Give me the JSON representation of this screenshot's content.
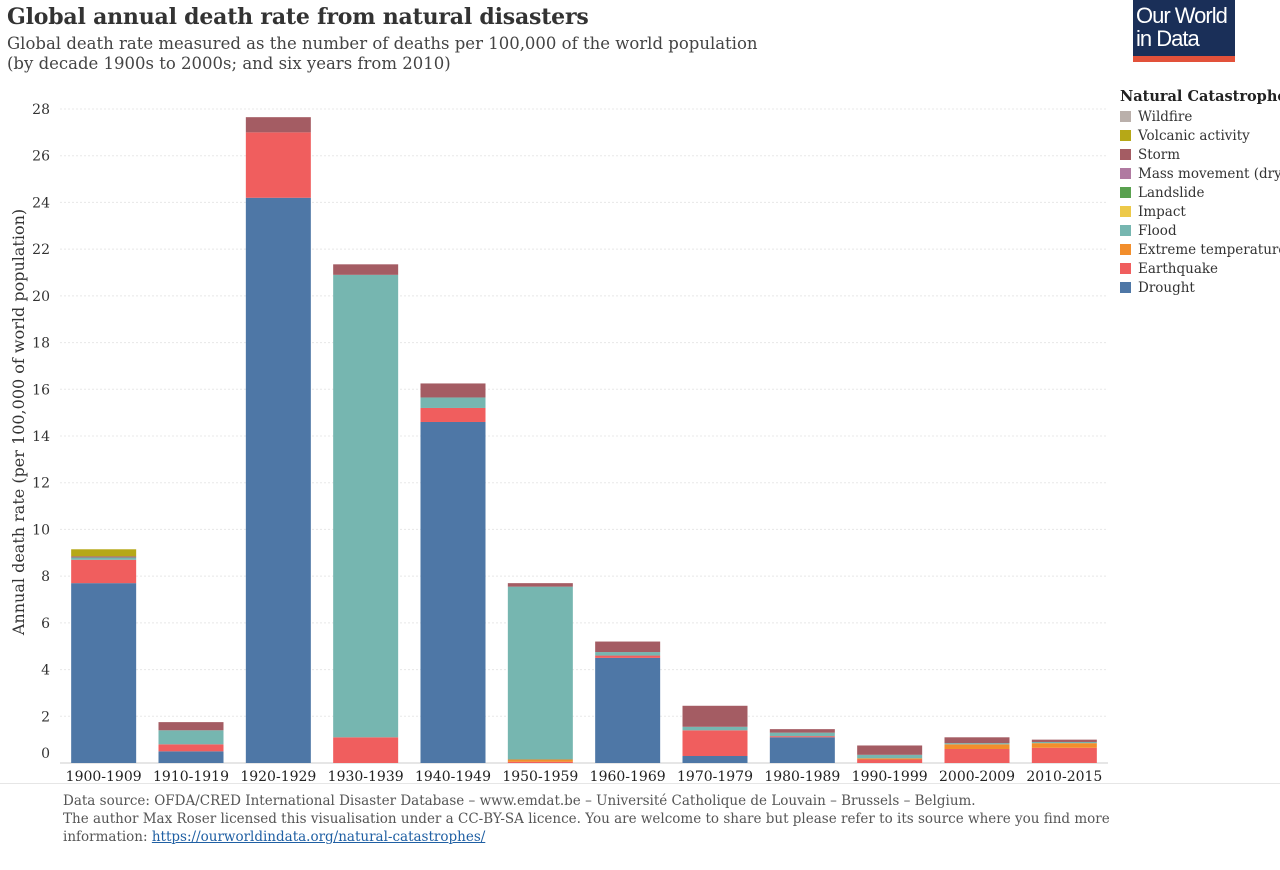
{
  "header": {
    "title": "Global annual death rate from natural disasters",
    "subtitle_line1": "Global death rate measured as the number of deaths per 100,000 of the world population",
    "subtitle_line2": "(by decade 1900s to 2000s; and six years from 2010)"
  },
  "logo": {
    "line1": "Our World",
    "line2": "in Data"
  },
  "legend": {
    "title": "Natural Catastrophe"
  },
  "footer": {
    "line1": "Data source: OFDA/CRED International Disaster Database – www.emdat.be – Université Catholique de Louvain – Brussels – Belgium.",
    "line2": "The author Max Roser licensed this visualisation under a CC-BY-SA licence. You are welcome to share but please refer to its source where you find more",
    "line3_prefix": "information: ",
    "link": "https://ourworldindata.org/natural-catastrophes/"
  },
  "chart_data": {
    "type": "bar",
    "stacked": true,
    "title": "Global annual death rate from natural disasters",
    "ylabel": "Annual death rate (per 100,000 of world population)",
    "xlabel": "",
    "ylim": [
      0,
      28
    ],
    "yticks": [
      0,
      2,
      4,
      6,
      8,
      10,
      12,
      14,
      16,
      18,
      20,
      22,
      24,
      26,
      28
    ],
    "categories": [
      "1900-1909",
      "1910-1919",
      "1920-1929",
      "1930-1939",
      "1940-1949",
      "1950-1959",
      "1960-1969",
      "1970-1979",
      "1980-1989",
      "1990-1999",
      "2000-2009",
      "2010-2015"
    ],
    "series": [
      {
        "name": "Drought",
        "color": "#4e77a6",
        "values": [
          7.7,
          0.5,
          24.2,
          0,
          14.6,
          0,
          4.5,
          0.3,
          1.1,
          0,
          0,
          0
        ]
      },
      {
        "name": "Earthquake",
        "color": "#f05e5e",
        "values": [
          1.0,
          0.3,
          2.8,
          1.1,
          0.6,
          0.05,
          0.1,
          1.1,
          0.05,
          0.15,
          0.6,
          0.65
        ]
      },
      {
        "name": "Extreme temperature",
        "color": "#f28e2c",
        "values": [
          0,
          0,
          0,
          0,
          0,
          0.1,
          0,
          0,
          0,
          0.05,
          0.2,
          0.2
        ]
      },
      {
        "name": "Flood",
        "color": "#76b6b0",
        "values": [
          0.1,
          0.6,
          0,
          19.8,
          0.45,
          7.4,
          0.15,
          0.15,
          0.15,
          0.15,
          0.05,
          0.05
        ]
      },
      {
        "name": "Impact",
        "color": "#edc949",
        "values": [
          0,
          0,
          0,
          0,
          0,
          0,
          0,
          0,
          0,
          0,
          0,
          0
        ]
      },
      {
        "name": "Landslide",
        "color": "#59a14f",
        "values": [
          0,
          0,
          0,
          0,
          0,
          0,
          0,
          0,
          0,
          0,
          0,
          0
        ]
      },
      {
        "name": "Mass movement (dry)",
        "color": "#b07aa1",
        "values": [
          0,
          0,
          0,
          0,
          0,
          0,
          0,
          0,
          0,
          0,
          0,
          0
        ]
      },
      {
        "name": "Storm",
        "color": "#a45c63",
        "values": [
          0.05,
          0.35,
          0.65,
          0.45,
          0.6,
          0.15,
          0.45,
          0.9,
          0.15,
          0.4,
          0.25,
          0.1
        ]
      },
      {
        "name": "Volcanic activity",
        "color": "#b6a817",
        "values": [
          0.3,
          0,
          0,
          0,
          0,
          0,
          0,
          0,
          0,
          0,
          0,
          0
        ]
      },
      {
        "name": "Wildfire",
        "color": "#bab0ab",
        "values": [
          0,
          0,
          0,
          0,
          0,
          0,
          0,
          0,
          0,
          0,
          0,
          0
        ]
      }
    ]
  }
}
